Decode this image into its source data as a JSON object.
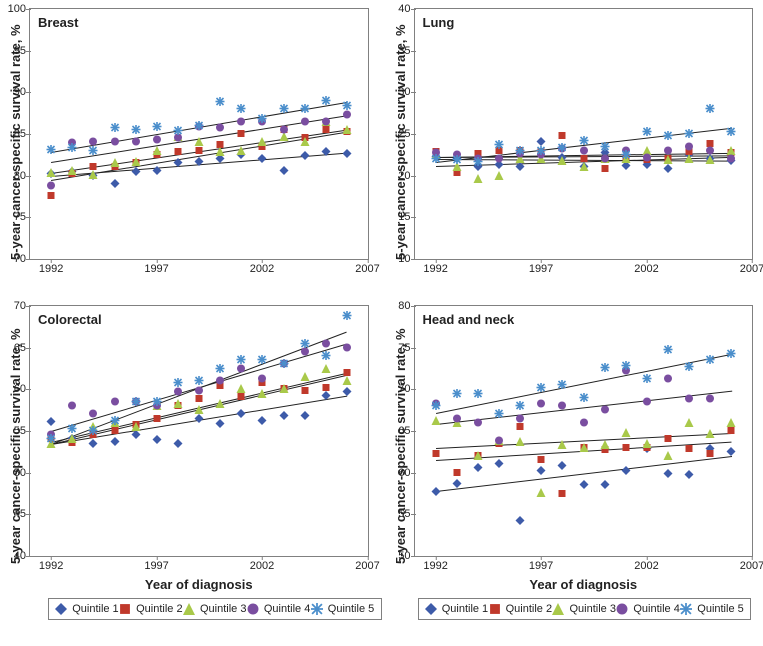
{
  "figure": {
    "background_color": "#ffffff",
    "border_color": "#808080",
    "font_family": "Arial",
    "title_fontsize": 13,
    "tick_fontsize": 11,
    "axis_label_fontsize": 13,
    "legend_fontsize": 11,
    "marker_size": 9,
    "line_width": 1,
    "line_color": "#222222"
  },
  "x_axis": {
    "label": "Year of diagnosis",
    "lim": [
      1991,
      2007
    ],
    "ticks": [
      1992,
      1997,
      2002,
      2007
    ]
  },
  "y_axis_label": "5-year cancer-specific survival rate, %",
  "series": [
    {
      "key": "q1",
      "label": "Quintile 1",
      "marker": "diamond",
      "color": "#3d5ba9"
    },
    {
      "key": "q2",
      "label": "Quintile 2",
      "marker": "square",
      "color": "#c0392b"
    },
    {
      "key": "q3",
      "label": "Quintile 3",
      "marker": "triangle",
      "color": "#a9c94a"
    },
    {
      "key": "q4",
      "label": "Quintile 4",
      "marker": "circle",
      "color": "#7a4ea0"
    },
    {
      "key": "q5",
      "label": "Quintile 5",
      "marker": "asterisk",
      "color": "#4a8ecb"
    }
  ],
  "years": [
    1992,
    1993,
    1994,
    1995,
    1996,
    1997,
    1998,
    1999,
    2000,
    2001,
    2002,
    2003,
    2004,
    2005,
    2006
  ],
  "panels": [
    {
      "title": "Breast",
      "ylim": [
        70,
        100
      ],
      "ytick_step": 5,
      "data": {
        "q1": [
          80.2,
          80.5,
          80.0,
          79.0,
          80.5,
          80.6,
          81.5,
          81.7,
          82.0,
          82.5,
          82.0,
          80.6,
          82.4,
          82.8,
          82.6
        ],
        "q2": [
          77.6,
          80.2,
          81.0,
          81.0,
          81.5,
          82.5,
          82.8,
          83.0,
          83.7,
          85.0,
          83.5,
          85.5,
          84.5,
          85.5,
          85.2
        ],
        "q3": [
          80.3,
          80.6,
          80.1,
          81.5,
          81.6,
          83.0,
          84.7,
          84.0,
          82.8,
          83.0,
          84.0,
          84.6,
          84.1,
          86.5,
          85.5
        ],
        "q4": [
          78.8,
          83.9,
          84.0,
          84.0,
          84.0,
          84.3,
          84.5,
          85.8,
          85.7,
          86.5,
          86.5,
          85.5,
          86.4,
          86.5,
          87.3
        ],
        "q5": [
          83.1,
          83.3,
          83.0,
          85.7,
          85.5,
          85.9,
          85.4,
          86.0,
          88.8,
          88.0,
          86.8,
          88.0,
          88.0,
          89.0,
          88.4
        ]
      },
      "trend": {
        "q1": [
          80.0,
          82.8
        ],
        "q2": [
          79.5,
          85.3
        ],
        "q3": [
          80.3,
          85.5
        ],
        "q4": [
          81.7,
          87.3
        ],
        "q5": [
          82.8,
          88.8
        ]
      }
    },
    {
      "title": "Lung",
      "ylim": [
        10,
        40
      ],
      "ytick_step": 5,
      "data": {
        "q1": [
          22.2,
          22.0,
          21.0,
          21.3,
          21.1,
          24.0,
          22.1,
          21.1,
          22.7,
          21.2,
          21.3,
          20.8,
          22.5,
          22.0,
          21.8
        ],
        "q2": [
          22.8,
          20.3,
          22.6,
          23.0,
          23.0,
          22.8,
          24.8,
          22.0,
          20.8,
          22.0,
          21.9,
          22.0,
          22.9,
          23.8,
          22.7
        ],
        "q3": [
          22.5,
          21.0,
          19.6,
          20.0,
          22.0,
          22.0,
          21.8,
          21.0,
          22.0,
          22.0,
          23.0,
          21.9,
          22.0,
          21.9,
          23.0
        ],
        "q4": [
          22.7,
          22.5,
          22.0,
          22.0,
          22.6,
          22.5,
          23.2,
          23.0,
          22.0,
          23.0,
          22.1,
          23.0,
          23.4,
          23.0,
          22.0
        ],
        "q5": [
          22.0,
          21.9,
          21.7,
          23.7,
          23.0,
          23.0,
          23.3,
          24.2,
          23.5,
          22.5,
          25.3,
          24.8,
          25.0,
          28.0,
          25.3
        ]
      },
      "trend": {
        "q1": [
          22.0,
          21.8
        ],
        "q2": [
          22.3,
          22.5
        ],
        "q3": [
          21.2,
          22.3
        ],
        "q4": [
          22.3,
          22.8
        ],
        "q5": [
          21.7,
          25.8
        ]
      }
    },
    {
      "title": "Colorectal",
      "ylim": [
        40,
        70
      ],
      "ytick_step": 5,
      "data": {
        "q1": [
          56.1,
          54.0,
          53.5,
          53.7,
          54.5,
          53.9,
          53.4,
          56.5,
          55.8,
          57.0,
          56.2,
          56.8,
          56.8,
          59.2,
          59.7
        ],
        "q2": [
          54.0,
          53.6,
          54.5,
          55.0,
          55.7,
          56.5,
          58.0,
          58.8,
          60.4,
          59.1,
          60.8,
          60.0,
          59.8,
          60.2,
          62.0
        ],
        "q3": [
          53.5,
          54.0,
          55.5,
          56.0,
          55.5,
          58.0,
          58.3,
          57.5,
          58.3,
          60.0,
          59.5,
          60.0,
          61.5,
          62.5,
          61.0
        ],
        "q4": [
          54.5,
          58.0,
          57.0,
          58.5,
          58.5,
          58.0,
          59.7,
          59.8,
          61.0,
          62.5,
          61.3,
          63.0,
          64.5,
          65.5,
          65.0
        ],
        "q5": [
          54.0,
          55.2,
          55.0,
          56.2,
          58.5,
          58.5,
          60.8,
          61.0,
          62.5,
          63.5,
          63.5,
          63.0,
          65.5,
          64.0,
          68.8
        ]
      },
      "trend": {
        "q1": [
          53.5,
          59.3
        ],
        "q2": [
          53.5,
          61.8
        ],
        "q3": [
          53.7,
          62.0
        ],
        "q4": [
          55.0,
          65.5
        ],
        "q5": [
          53.5,
          67.0
        ]
      }
    },
    {
      "title": "Head and neck",
      "ylim": [
        50,
        80
      ],
      "ytick_step": 5,
      "data": {
        "q1": [
          57.7,
          58.6,
          60.6,
          61.0,
          54.2,
          60.2,
          60.8,
          58.5,
          58.5,
          60.2,
          62.8,
          59.9,
          59.7,
          62.8,
          62.5
        ],
        "q2": [
          62.2,
          60.0,
          62.0,
          63.5,
          65.5,
          61.5,
          57.5,
          63.0,
          62.7,
          63.0,
          63.0,
          64.0,
          62.8,
          62.3,
          65.0
        ],
        "q3": [
          66.2,
          66.0,
          62.0,
          63.8,
          63.7,
          57.6,
          63.3,
          63.0,
          63.3,
          64.8,
          63.5,
          62.0,
          66.0,
          64.7,
          66.0
        ],
        "q4": [
          68.3,
          66.5,
          66.0,
          63.8,
          66.5,
          68.3,
          68.0,
          66.0,
          67.5,
          72.2,
          68.5,
          71.2,
          68.8,
          68.8,
          null
        ],
        "q5": [
          68.0,
          69.5,
          69.5,
          67.0,
          68.0,
          70.2,
          70.5,
          69.0,
          72.6,
          72.8,
          71.3,
          74.7,
          72.7,
          73.5,
          74.3
        ]
      },
      "trend": {
        "q1": [
          57.8,
          62.0
        ],
        "q2": [
          61.5,
          63.7
        ],
        "q3": [
          63.0,
          64.8
        ],
        "q4": [
          65.8,
          69.8
        ],
        "q5": [
          67.2,
          74.3
        ]
      }
    }
  ]
}
